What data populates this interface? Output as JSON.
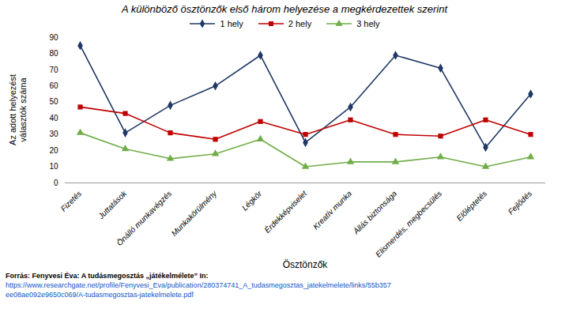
{
  "chart_data": {
    "type": "line",
    "title": "A különböző ösztönzők első három helyezése a megkérdezettek szerint",
    "xlabel": "Ösztönzők",
    "ylabel": "Az adott helyezést\nválasztók száma",
    "categories": [
      "Fizetés",
      "Juttatások",
      "Önálló munkavégzés",
      "Munkakörülmény",
      "Légkör",
      "Érdekképviselet",
      "Kreatív munka",
      "Állás biztonsága",
      "Elismerdés, megbecsülés",
      "Előléptetés",
      "Fejlődés"
    ],
    "series": [
      {
        "name": "1 hely",
        "values": [
          85,
          31,
          48,
          60,
          79,
          25,
          47,
          79,
          71,
          22,
          55
        ],
        "color": "#1F3864",
        "marker": "diamond",
        "line_style": "solid"
      },
      {
        "name": "2 hely",
        "values": [
          47,
          43,
          31,
          27,
          38,
          30,
          39,
          30,
          29,
          39,
          30
        ],
        "color": "#C00000",
        "marker": "square",
        "line_style": "solid"
      },
      {
        "name": "3 hely",
        "values": [
          31,
          21,
          15,
          18,
          27,
          10,
          13,
          13,
          16,
          10,
          16
        ],
        "color": "#70AD47",
        "marker": "triangle",
        "line_style": "solid"
      }
    ],
    "ylim": [
      0,
      90
    ],
    "yticks": [
      0,
      10,
      20,
      30,
      40,
      50,
      60,
      70,
      80,
      90
    ],
    "grid": false,
    "legend": "top",
    "annotations": [
      {
        "text": "Forrás: Fenyvesi Éva: A tudásmegosztás „játékelmélete” In:",
        "color": "#000000"
      },
      {
        "text": "https://www.researchgate.net/profile/Fenyvesi_Eva/publication/280374741_A_tudasmegosztas_jatekelmelete/links/55b357",
        "color": "#1155CC"
      },
      {
        "text": "ee08ae092e9650c069/A-tudasmegosztas-jatekelmelete.pdf",
        "color": "#1155CC"
      }
    ]
  }
}
